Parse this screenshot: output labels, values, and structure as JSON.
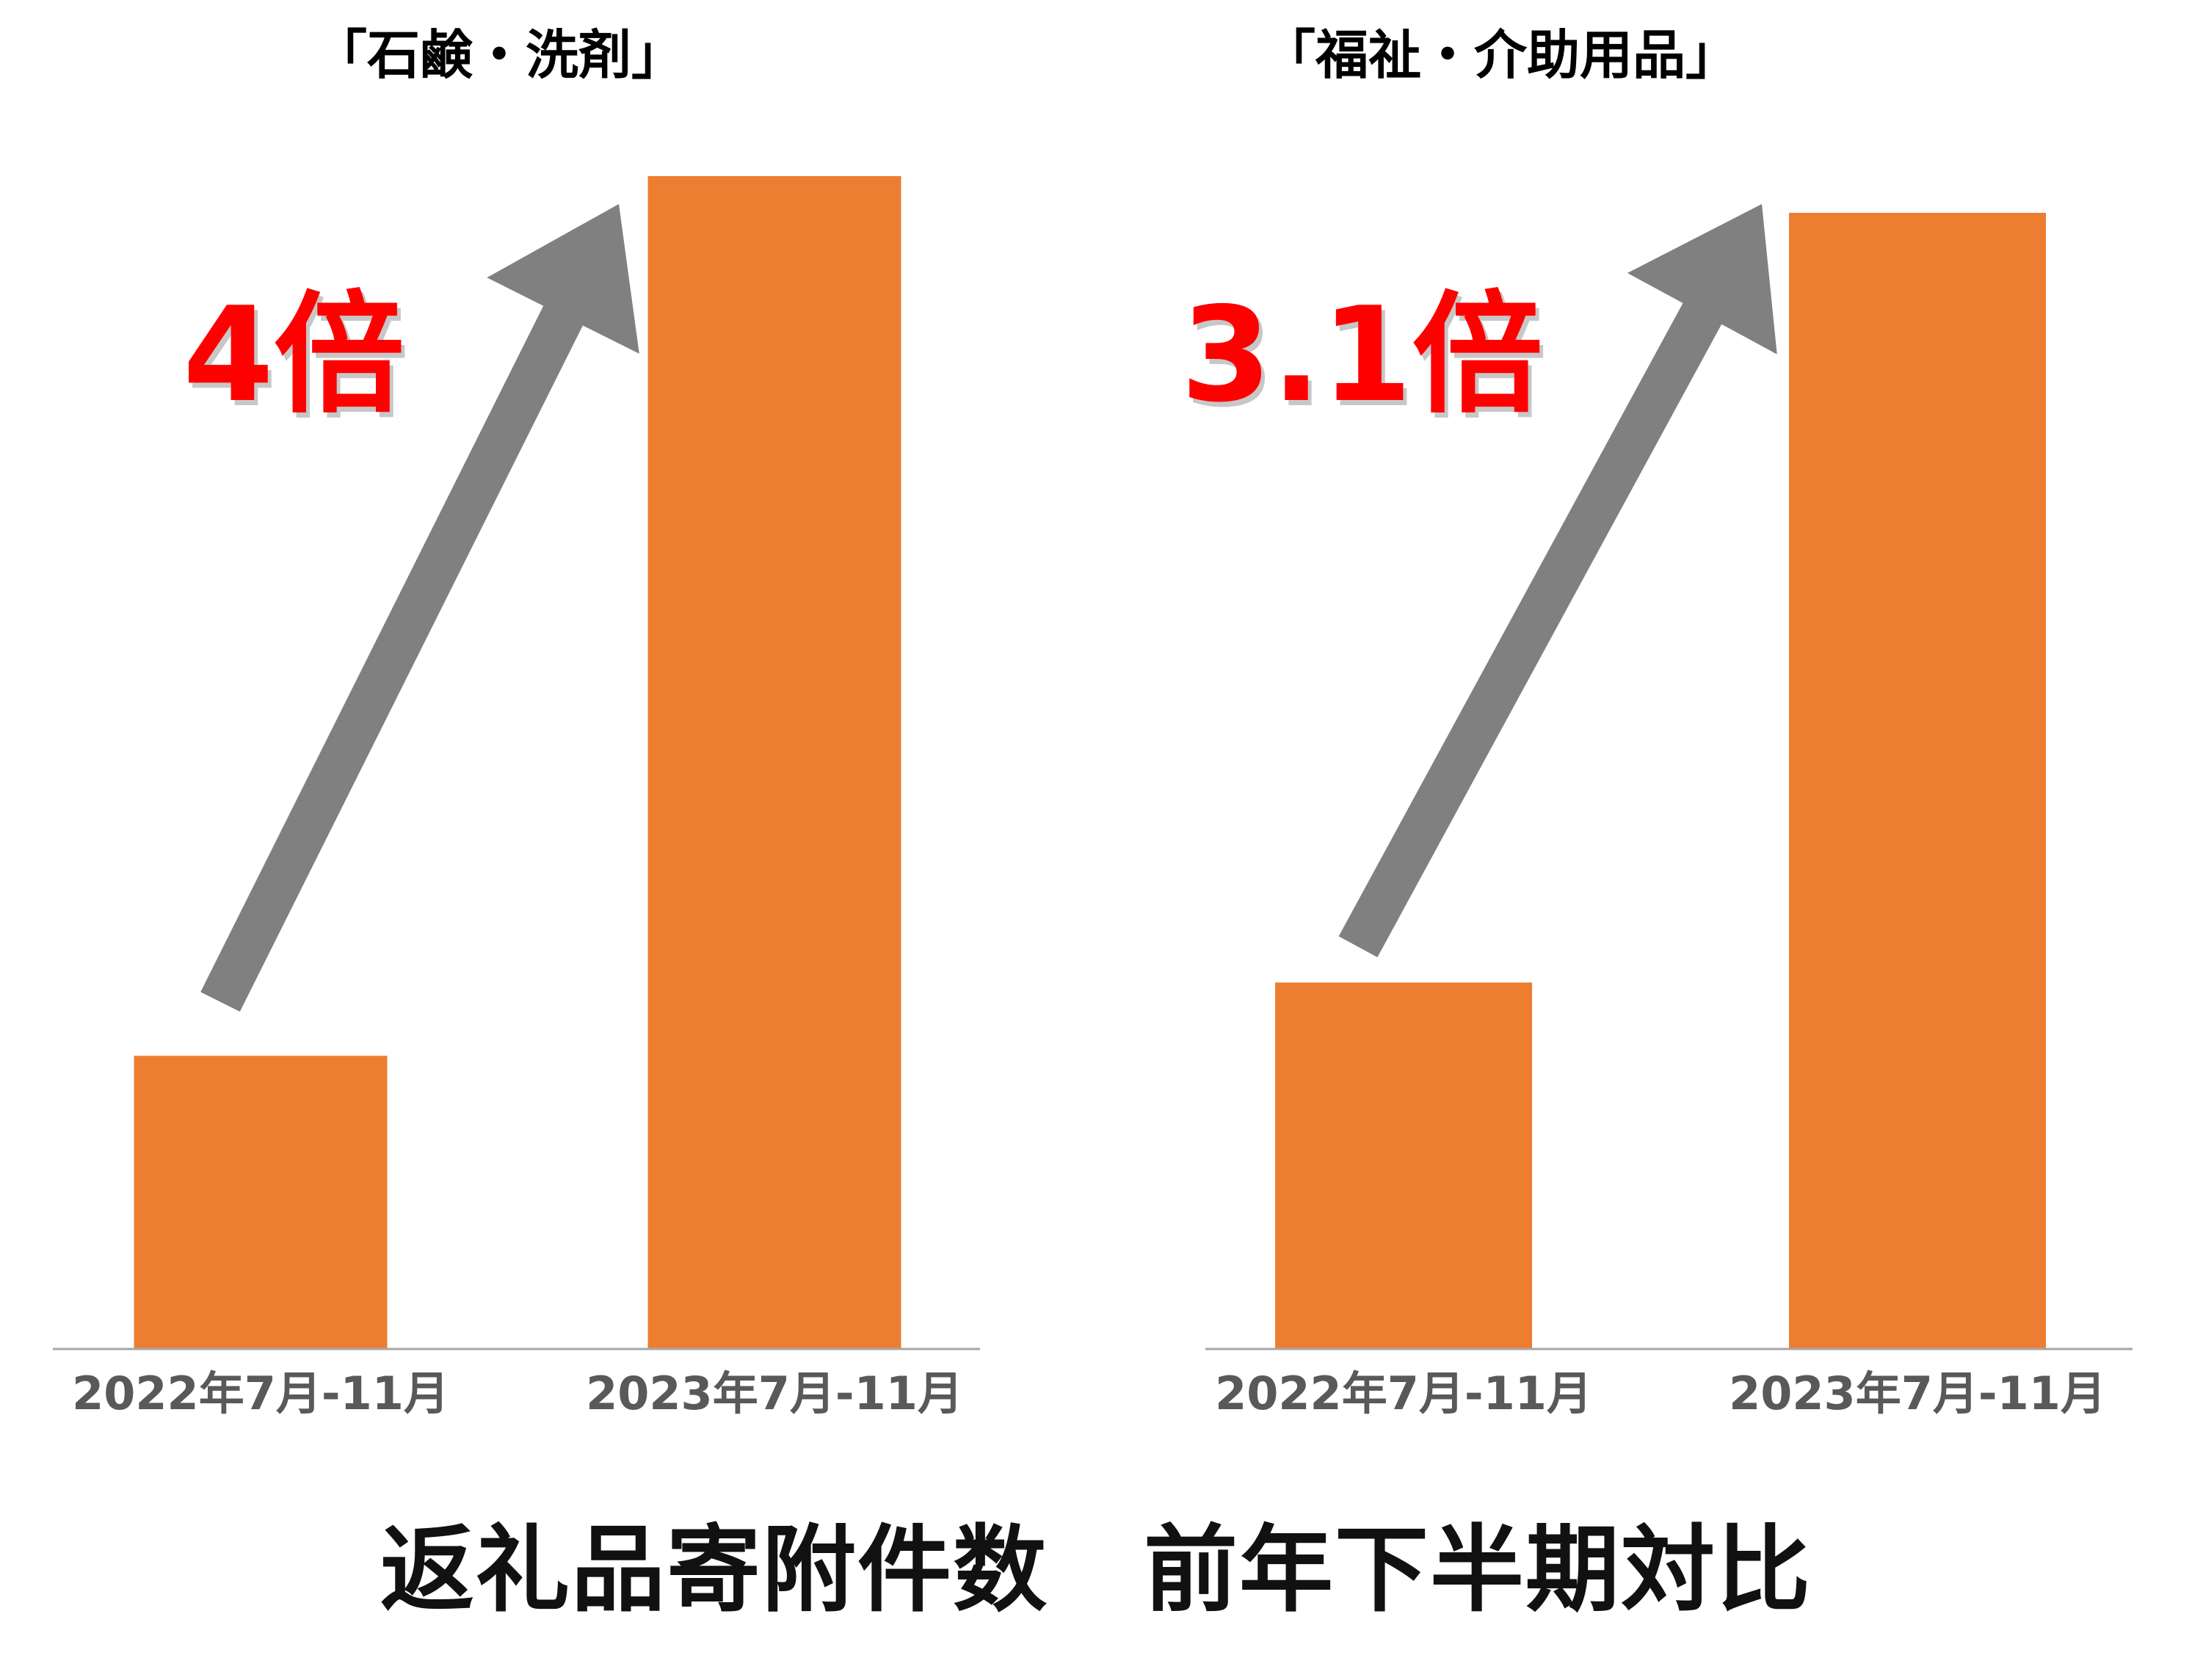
{
  "chart_data": [
    {
      "type": "bar",
      "title": "「石鹸・洗剤」",
      "categories": [
        "2022年7月-11月",
        "2023年7月-11月"
      ],
      "values": [
        1,
        4
      ],
      "ylim": [
        0,
        4.15
      ],
      "annotation": "4倍",
      "axes_visible": false,
      "grid": false
    },
    {
      "type": "bar",
      "title": "「福祉・介助用品」",
      "categories": [
        "2022年7月-11月",
        "2023年7月-11月"
      ],
      "values": [
        1,
        3.1
      ],
      "ylim": [
        0,
        3.12
      ],
      "annotation": "3.1倍",
      "axes_visible": false,
      "grid": false
    }
  ],
  "caption": "返礼品寄附件数　前年下半期対比",
  "colors": {
    "bar": "#ED7D31",
    "arrow": "#808080",
    "annotation": "#FF0000",
    "axis_line": "#A6A6A6",
    "tick_label": "#595959",
    "title": "#000000"
  }
}
